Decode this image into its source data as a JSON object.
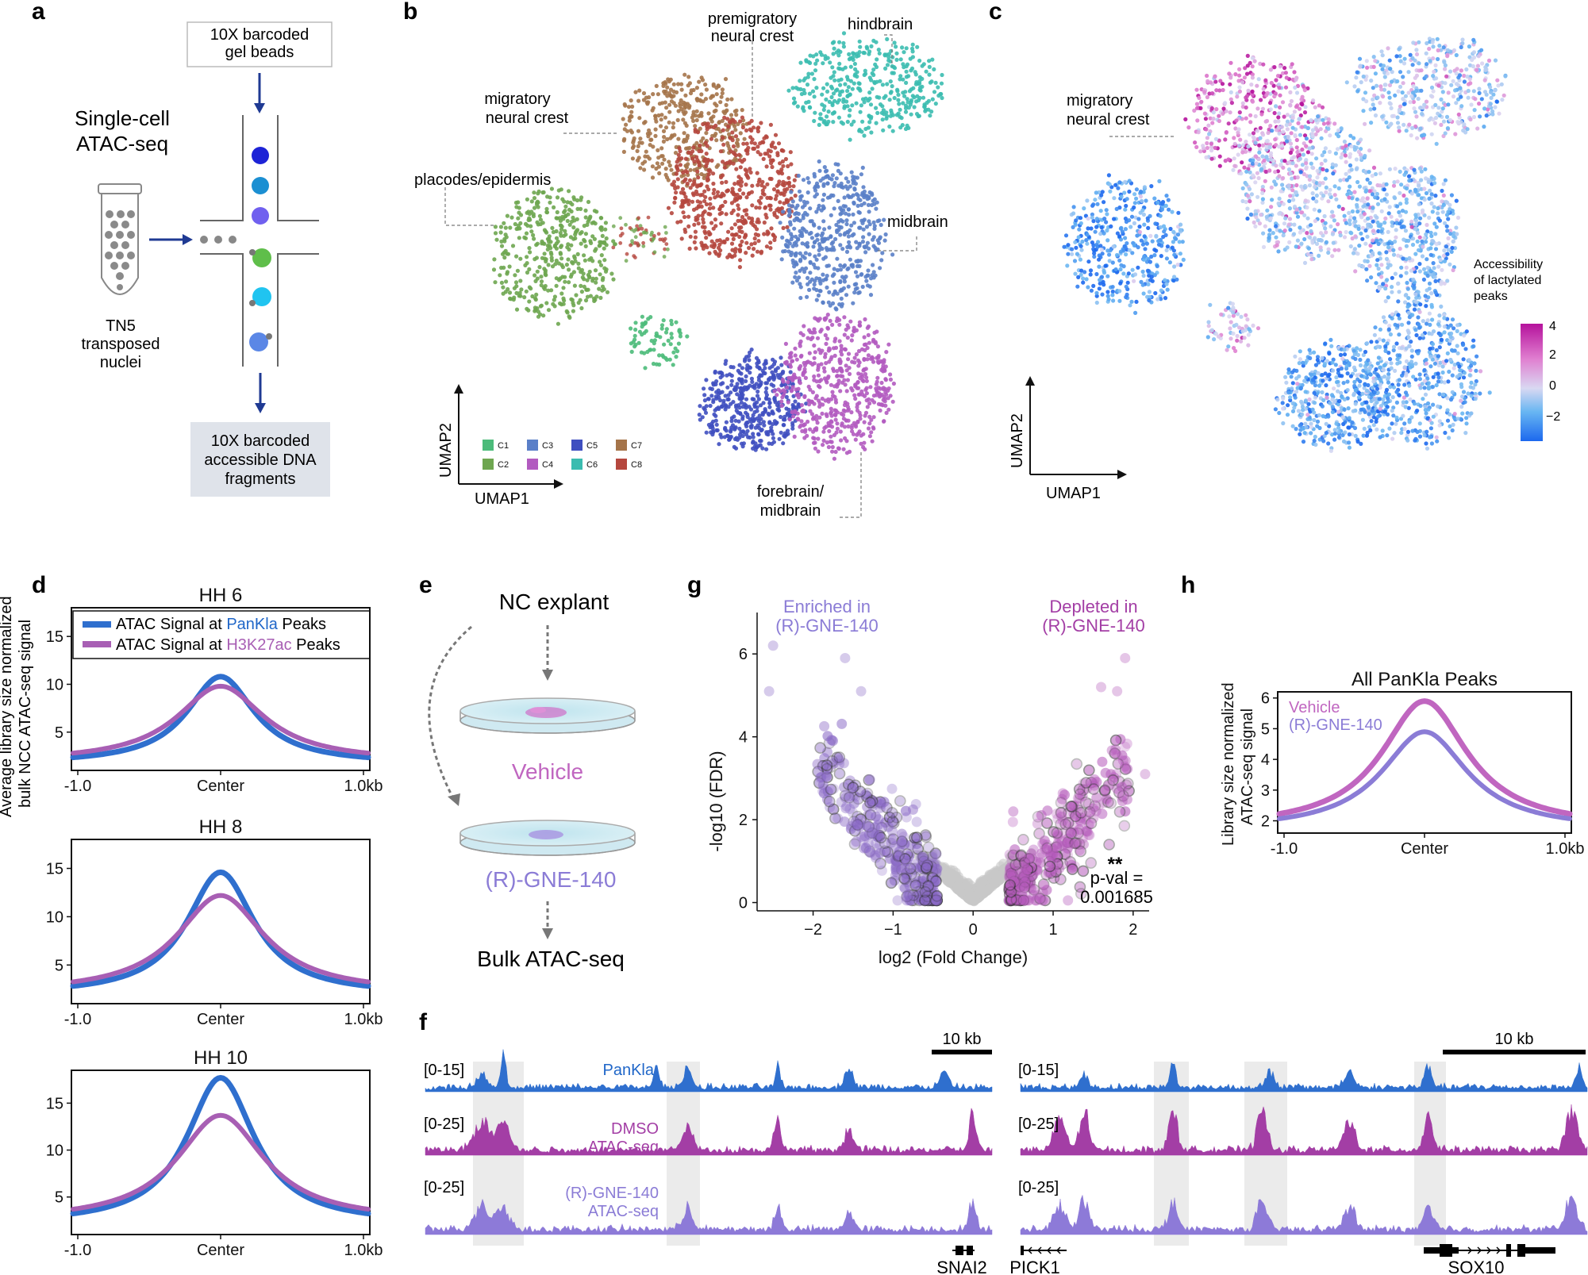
{
  "panel_labels": {
    "a": "a",
    "b": "b",
    "c": "c",
    "d": "d",
    "e": "e",
    "f": "f",
    "g": "g",
    "h": "h"
  },
  "colors": {
    "panKla": "#2f6fce",
    "h3k27ac": "#a85fb4",
    "vehicle": "#c066c0",
    "gne": "#8b7cd6",
    "dmso": "#a33ea5",
    "gne_track": "#8d7ad8",
    "c1": "#4cbb7a",
    "c2": "#6ea650",
    "c3": "#5a7fc8",
    "c4": "#b25bc0",
    "c5": "#3f4fc0",
    "c6": "#3bbcb0",
    "c7": "#a5744a",
    "c8": "#b5473e"
  },
  "panel_a": {
    "title_l1": "Single-cell",
    "title_l2": "ATAC-seq",
    "beads_l1": "10X barcoded",
    "beads_l2": "gel beads",
    "tube_l1": "TN5",
    "tube_l2": "transposed",
    "tube_l3": "nuclei",
    "out_l1": "10X barcoded",
    "out_l2": "accessible DNA",
    "out_l3": "fragments"
  },
  "panel_b": {
    "labels": {
      "premig_l1": "premigratory",
      "premig_l2": "neural crest",
      "hind": "hindbrain",
      "mig_l1": "migratory",
      "mig_l2": "neural crest",
      "plac": "placodes/epidermis",
      "mid": "midbrain",
      "fore_l1": "forebrain/",
      "fore_l2": "midbrain"
    },
    "axis_x": "UMAP1",
    "axis_y": "UMAP2",
    "legend": [
      "C1",
      "C2",
      "C3",
      "C4",
      "C5",
      "C6",
      "C7",
      "C8"
    ]
  },
  "panel_c": {
    "mig_l1": "migratory",
    "mig_l2": "neural crest",
    "cbar_title_l1": "Accessibility",
    "cbar_title_l2": "of lactylated",
    "cbar_title_l3": "peaks",
    "cbar_ticks": [
      "4",
      "2",
      "0",
      "−2"
    ],
    "axis_x": "UMAP1",
    "axis_y": "UMAP2"
  },
  "panel_d": {
    "ylabel_l1": "Average library size normalized",
    "ylabel_l2": "bulk NCC ATAC-seq signal",
    "legend_pre": "ATAC Signal at ",
    "legend1_key": "PanKla",
    "legend2_key": "H3K27ac",
    "legend_post": " Peaks",
    "x_ticks": [
      "-1.0",
      "Center",
      "1.0kb"
    ]
  },
  "panel_e": {
    "top": "NC explant",
    "vehicle": "Vehicle",
    "gne": "(R)-GNE-140",
    "bottom": "Bulk ATAC-seq"
  },
  "panel_f": {
    "scale": "10 kb",
    "ranges": [
      "[0-15]",
      "[0-25]",
      "[0-25]"
    ],
    "track1": "PanKla",
    "track2_l1": "DMSO",
    "track2_l2": "ATAC-seq",
    "track3_l1": "(R)-GNE-140",
    "track3_l2": "ATAC-seq",
    "genes": [
      "SNAI2",
      "PICK1",
      "SOX10"
    ]
  },
  "chart_data": [
    {
      "type": "line",
      "title": "HH 6",
      "xlabel": "",
      "ylabel": "Average library size normalized bulk NCC ATAC-seq signal",
      "x_ticks": [
        "-1.0",
        "Center",
        "1.0kb"
      ],
      "y_ticks": [
        5,
        10,
        15
      ],
      "ylim": [
        1,
        18
      ],
      "series": [
        {
          "name": "ATAC Signal at PanKla Peaks",
          "peak": 10.8,
          "base": 1.7,
          "width": 0.28
        },
        {
          "name": "ATAC Signal at H3K27ac Peaks",
          "peak": 9.8,
          "base": 1.9,
          "width": 0.36
        }
      ]
    },
    {
      "type": "line",
      "title": "HH 8",
      "x_ticks": [
        "-1.0",
        "Center",
        "1.0kb"
      ],
      "y_ticks": [
        5,
        10,
        15
      ],
      "ylim": [
        1,
        18
      ],
      "series": [
        {
          "name": "ATAC Signal at PanKla Peaks",
          "peak": 14.6,
          "base": 1.9,
          "width": 0.28
        },
        {
          "name": "ATAC Signal at H3K27ac Peaks",
          "peak": 12.2,
          "base": 2.1,
          "width": 0.36
        }
      ]
    },
    {
      "type": "line",
      "title": "HH 10",
      "x_ticks": [
        "-1.0",
        "Center",
        "1.0kb"
      ],
      "y_ticks": [
        5,
        10,
        15
      ],
      "ylim": [
        1,
        18.5
      ],
      "series": [
        {
          "name": "ATAC Signal at PanKla Peaks",
          "peak": 17.7,
          "base": 2.1,
          "width": 0.28
        },
        {
          "name": "ATAC Signal at H3K27ac Peaks",
          "peak": 13.7,
          "base": 2.4,
          "width": 0.36
        }
      ]
    },
    {
      "type": "scatter",
      "title": "",
      "xlabel": "log2 (Fold Change)",
      "ylabel": "-log10 (FDR)",
      "x_ticks": [
        -2,
        -1,
        0,
        1,
        2
      ],
      "y_ticks": [
        0,
        2,
        4,
        6
      ],
      "xlim": [
        -2.7,
        2.2
      ],
      "ylim": [
        -0.2,
        7
      ],
      "annotations": {
        "left_l1": "Enriched in",
        "left_l2": "(R)-GNE-140",
        "right_l1": "Depleted in",
        "right_l2": "(R)-GNE-140",
        "stars": "**",
        "pval_l1": "p-val =",
        "pval_l2": "0.001685"
      }
    },
    {
      "type": "line",
      "title": "All PanKla Peaks",
      "ylabel": "Library size normalized ATAC-seq signal",
      "x_ticks": [
        "-1.0",
        "Center",
        "1.0kb"
      ],
      "y_ticks": [
        2,
        3,
        4,
        5,
        6
      ],
      "ylim": [
        1.6,
        6.2
      ],
      "series": [
        {
          "name": "Vehicle",
          "peak": 5.9,
          "base": 1.75,
          "width": 0.36
        },
        {
          "name": "(R)-GNE-140",
          "peak": 4.9,
          "base": 1.7,
          "width": 0.36
        }
      ]
    }
  ]
}
